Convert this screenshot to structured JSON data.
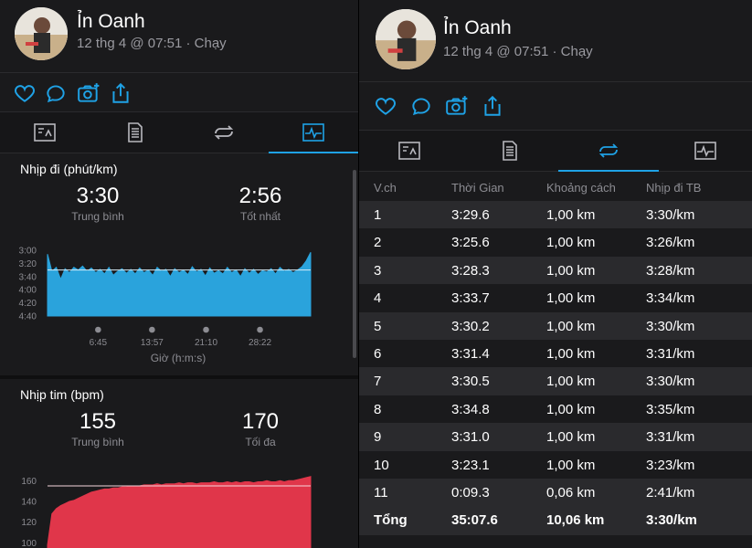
{
  "user": {
    "name": "Ỉn Oanh",
    "meta": "12 thg 4 @ 07:51 · Chạy"
  },
  "colors": {
    "accent": "#1fa2e6",
    "pace_fill": "#2aa3dc",
    "hr_fill": "#e0364a",
    "icon": "#1fa2e6"
  },
  "actions": [
    "heart-icon",
    "comment-icon",
    "camera-add-icon",
    "share-icon"
  ],
  "tabs": [
    "summary-tab",
    "details-tab",
    "laps-tab",
    "charts-tab"
  ],
  "pace": {
    "title": "Nhịp đi (phút/km)",
    "avg_value": "3:30",
    "avg_label": "Trung bình",
    "best_value": "2:56",
    "best_label": "Tốt nhất",
    "x_axis_title": "Giờ (h:m:s)"
  },
  "hr": {
    "title": "Nhịp tim (bpm)",
    "avg_value": "155",
    "avg_label": "Trung bình",
    "max_value": "170",
    "max_label": "Tối đa"
  },
  "chart_data": [
    {
      "type": "area",
      "title": "Nhịp đi (phút/km)",
      "xlabel": "Giờ (h:m:s)",
      "ylabel": "",
      "y_tick_labels": [
        "3:00",
        "3:20",
        "3:40",
        "4:00",
        "4:20",
        "4:40"
      ],
      "y_ticks_sec": [
        180,
        200,
        220,
        240,
        260,
        280
      ],
      "ylim_sec": [
        180,
        280
      ],
      "y_inverted": true,
      "x_tick_labels": [
        "6:45",
        "13:57",
        "21:10",
        "28:22"
      ],
      "x_ticks_sec": [
        405,
        837,
        1270,
        1702
      ],
      "xlim_sec": [
        0,
        2108
      ],
      "average_line_sec": 210,
      "series": [
        {
          "values_sec": [
            186,
            212,
            206,
            224,
            208,
            214,
            206,
            210,
            204,
            212,
            207,
            214,
            209,
            216,
            206,
            218,
            212,
            208,
            215,
            209,
            216,
            207,
            214,
            210,
            218,
            206,
            212,
            209,
            220,
            208,
            214,
            210,
            217,
            205,
            213,
            209,
            219,
            207,
            215,
            211,
            216,
            206,
            214,
            210,
            220,
            208,
            215,
            209,
            217,
            211,
            213,
            208,
            216,
            206,
            212,
            209,
            214,
            210,
            205,
            196,
            183
          ]
        }
      ]
    },
    {
      "type": "area",
      "title": "Nhịp tim (bpm)",
      "xlabel": "",
      "ylabel": "",
      "y_ticks": [
        100,
        120,
        140,
        160
      ],
      "ylim": [
        95,
        170
      ],
      "average_line": 155,
      "series": [
        {
          "values": [
            98,
            128,
            133,
            136,
            138,
            140,
            141,
            143,
            145,
            147,
            149,
            150,
            151,
            152,
            152,
            153,
            153,
            154,
            154,
            155,
            155,
            155,
            156,
            156,
            156,
            157,
            156,
            157,
            157,
            157,
            158,
            157,
            158,
            158,
            157,
            158,
            158,
            158,
            159,
            158,
            158,
            159,
            158,
            159,
            158,
            159,
            159,
            158,
            159,
            159,
            160,
            159,
            159,
            160,
            159,
            160,
            160,
            161,
            162,
            163,
            164
          ]
        }
      ]
    }
  ],
  "laps": {
    "headers": [
      "V.ch",
      "Thời Gian",
      "Khoảng cách",
      "Nhịp đi TB"
    ],
    "rows": [
      [
        "1",
        "3:29.6",
        "1,00 km",
        "3:30/km"
      ],
      [
        "2",
        "3:25.6",
        "1,00 km",
        "3:26/km"
      ],
      [
        "3",
        "3:28.3",
        "1,00 km",
        "3:28/km"
      ],
      [
        "4",
        "3:33.7",
        "1,00 km",
        "3:34/km"
      ],
      [
        "5",
        "3:30.2",
        "1,00 km",
        "3:30/km"
      ],
      [
        "6",
        "3:31.4",
        "1,00 km",
        "3:31/km"
      ],
      [
        "7",
        "3:30.5",
        "1,00 km",
        "3:30/km"
      ],
      [
        "8",
        "3:34.8",
        "1,00 km",
        "3:35/km"
      ],
      [
        "9",
        "3:31.0",
        "1,00 km",
        "3:31/km"
      ],
      [
        "10",
        "3:23.1",
        "1,00 km",
        "3:23/km"
      ],
      [
        "11",
        "0:09.3",
        "0,06 km",
        "2:41/km"
      ]
    ],
    "total": [
      "Tổng",
      "35:07.6",
      "10,06 km",
      "3:30/km"
    ]
  }
}
